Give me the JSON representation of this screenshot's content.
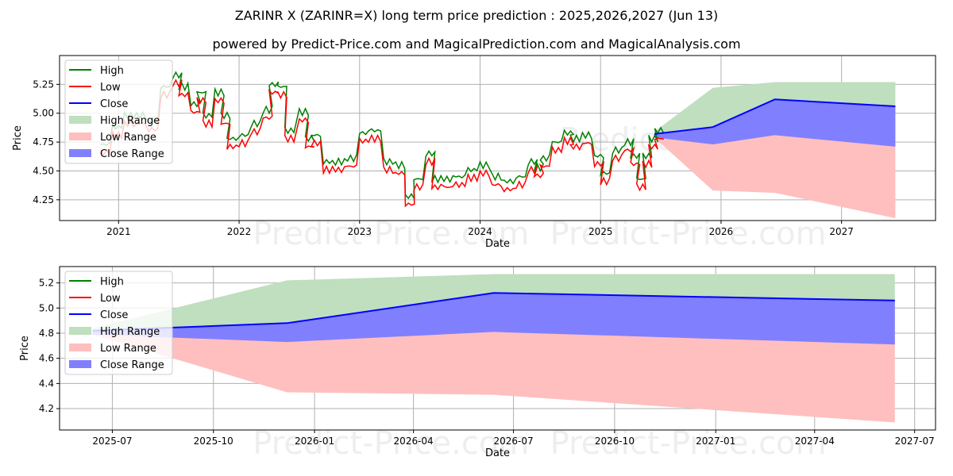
{
  "title": "ZARINR X (ZARINR=X) long term price prediction : 2025,2026,2027 (Jun 13)",
  "subtitle": "powered by Predict-Price.com and MagicalPrediction.com and MagicalAnalysis.com",
  "watermark": "Predict-Price.com",
  "legend": [
    "High",
    "Low",
    "Close",
    "High Range",
    "Low Range",
    "Close Range"
  ],
  "colors": {
    "high": "#008000",
    "low": "#ff0000",
    "close": "#0000ff",
    "high_range": "#bfdfbf",
    "low_range": "#ffbfbf",
    "close_range": "#8080ff"
  },
  "chart_data": [
    {
      "type": "line",
      "panel": "top",
      "xlabel": "Date",
      "ylabel": "Price",
      "xlim": [
        2020.51,
        2027.78
      ],
      "ylim": [
        4.07,
        5.5
      ],
      "xticks": [
        {
          "v": 2021,
          "label": "2021"
        },
        {
          "v": 2022,
          "label": "2022"
        },
        {
          "v": 2023,
          "label": "2023"
        },
        {
          "v": 2024,
          "label": "2024"
        },
        {
          "v": 2025,
          "label": "2025"
        },
        {
          "v": 2026,
          "label": "2026"
        },
        {
          "v": 2027,
          "label": "2027"
        }
      ],
      "yticks": [
        {
          "v": 4.25,
          "label": "4.25"
        },
        {
          "v": 4.5,
          "label": "4.50"
        },
        {
          "v": 4.75,
          "label": "4.75"
        },
        {
          "v": 5.0,
          "label": "5.00"
        },
        {
          "v": 5.25,
          "label": "5.25"
        }
      ],
      "grid": true,
      "legend_position": "top-left",
      "history": {
        "x": [
          2020.85,
          2020.95,
          2021.05,
          2021.15,
          2021.25,
          2021.35,
          2021.45,
          2021.5,
          2021.6,
          2021.65,
          2021.7,
          2021.8,
          2021.85,
          2021.9,
          2022.0,
          2022.1,
          2022.2,
          2022.25,
          2022.32,
          2022.38,
          2022.5,
          2022.55,
          2022.6,
          2022.7,
          2022.8,
          2022.9,
          2023.0,
          2023.1,
          2023.2,
          2023.3,
          2023.38,
          2023.45,
          2023.55,
          2023.6,
          2023.7,
          2023.8,
          2023.9,
          2024.0,
          2024.1,
          2024.2,
          2024.3,
          2024.4,
          2024.45,
          2024.5,
          2024.6,
          2024.7,
          2024.75,
          2024.85,
          2024.95,
          2025.0,
          2025.1,
          2025.2,
          2025.25,
          2025.3,
          2025.35,
          2025.4,
          2025.45
        ],
        "close": [
          4.7,
          4.85,
          4.95,
          4.95,
          4.9,
          5.2,
          5.3,
          5.2,
          5.05,
          5.15,
          4.95,
          5.15,
          4.95,
          4.75,
          4.78,
          4.88,
          5.0,
          5.22,
          5.2,
          4.82,
          4.98,
          4.75,
          4.78,
          4.55,
          4.55,
          4.58,
          4.8,
          4.82,
          4.55,
          4.52,
          4.25,
          4.4,
          4.62,
          4.4,
          4.4,
          4.42,
          4.48,
          4.52,
          4.42,
          4.38,
          4.42,
          4.55,
          4.5,
          4.58,
          4.72,
          4.8,
          4.75,
          4.78,
          4.6,
          4.45,
          4.65,
          4.72,
          4.6,
          4.4,
          4.6,
          4.75,
          4.82
        ],
        "high_offset": 0.03,
        "low_offset": -0.04
      }
    },
    {
      "type": "area",
      "panel": "bottom",
      "xlabel": "Date",
      "ylabel": "Price",
      "xlim": [
        "2025-05-14",
        "2027-07-20"
      ],
      "ylim": [
        4.03,
        5.33
      ],
      "xticks": [
        "2025-07",
        "2025-10",
        "2026-01",
        "2026-04",
        "2026-07",
        "2026-10",
        "2027-01",
        "2027-04",
        "2027-07"
      ],
      "yticks": [
        {
          "v": 4.2,
          "label": "4.2"
        },
        {
          "v": 4.4,
          "label": "4.4"
        },
        {
          "v": 4.6,
          "label": "4.6"
        },
        {
          "v": 4.8,
          "label": "4.8"
        },
        {
          "v": 5.0,
          "label": "5.0"
        },
        {
          "v": 5.2,
          "label": "5.2"
        }
      ],
      "grid": true,
      "legend_position": "top-left",
      "forecast": {
        "dates": [
          "2025-06-13",
          "2025-12-07",
          "2026-06-13",
          "2027-06-13"
        ],
        "close": [
          4.82,
          4.88,
          5.12,
          5.06
        ],
        "high_range_top": [
          4.84,
          5.22,
          5.27,
          5.27
        ],
        "low_range_bottom": [
          4.79,
          4.33,
          4.31,
          4.09
        ],
        "close_range_low": [
          4.79,
          4.73,
          4.81,
          4.71
        ]
      }
    }
  ]
}
